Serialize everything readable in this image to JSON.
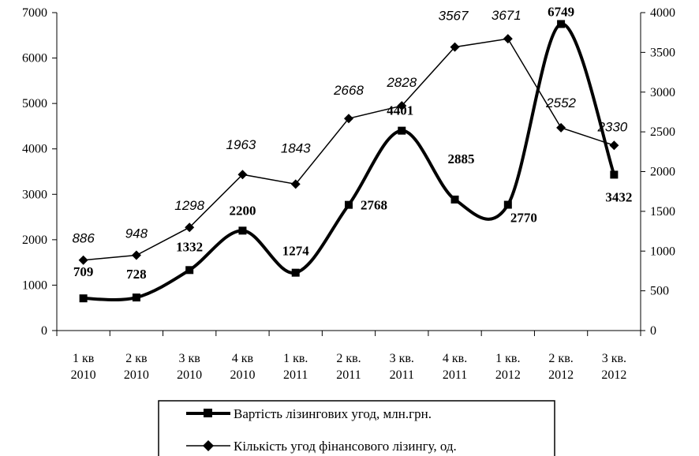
{
  "chart_data": {
    "type": "line",
    "categories": [
      [
        "1 кв",
        "2010"
      ],
      [
        "2 кв",
        "2010"
      ],
      [
        "3 кв",
        "2010"
      ],
      [
        "4 кв",
        "2010"
      ],
      [
        "1 кв.",
        "2011"
      ],
      [
        "2 кв.",
        "2011"
      ],
      [
        "3 кв.",
        "2011"
      ],
      [
        "4 кв.",
        "2011"
      ],
      [
        "1 кв.",
        "2012"
      ],
      [
        "2 кв.",
        "2012"
      ],
      [
        "3 кв.",
        "2012"
      ]
    ],
    "left_axis": {
      "ylim": [
        0,
        7000
      ],
      "ticks": [
        0,
        1000,
        2000,
        3000,
        4000,
        5000,
        6000,
        7000
      ]
    },
    "right_axis": {
      "ylim": [
        0,
        4000
      ],
      "ticks": [
        0,
        500,
        1000,
        1500,
        2000,
        2500,
        3000,
        3500,
        4000
      ]
    },
    "series": [
      {
        "name": "Вартість лізингових угод, млн.грн.",
        "axis": "left",
        "values": [
          709,
          728,
          1332,
          2200,
          1274,
          2768,
          4401,
          2885,
          2770,
          6749,
          3432
        ],
        "labels": [
          "709",
          "728",
          "1332",
          "2200",
          "1274",
          "2768",
          "4401",
          "2885",
          "2770",
          "6749",
          "3432"
        ],
        "marker": "square",
        "smooth": true,
        "color": "#000000"
      },
      {
        "name": "Кількість угод фінансового лізингу, од.",
        "axis": "right",
        "values": [
          886,
          948,
          1298,
          1963,
          1843,
          2668,
          2828,
          3567,
          3671,
          2552,
          2330
        ],
        "labels": [
          "886",
          "948",
          "1298",
          "1963",
          "1843",
          "2668",
          "2828",
          "3567",
          "3671",
          "2552",
          "2330"
        ],
        "marker": "diamond",
        "smooth": false,
        "color": "#000000"
      }
    ],
    "legend_position": "bottom",
    "grid": false
  }
}
